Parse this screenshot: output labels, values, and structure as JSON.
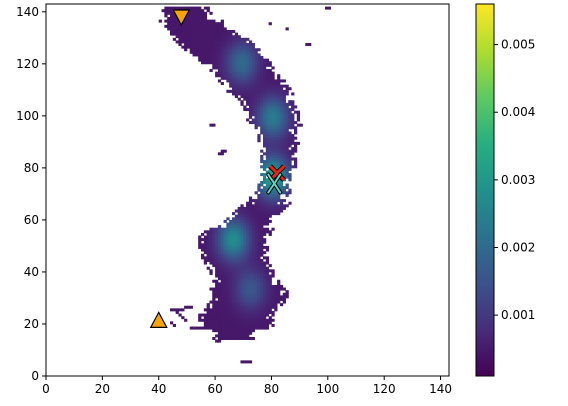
{
  "chart_data": {
    "type": "heatmap",
    "title": "",
    "xlabel": "",
    "ylabel": "",
    "xlim": [
      0,
      143
    ],
    "ylim": [
      0,
      143
    ],
    "x_ticks": [
      0,
      20,
      40,
      60,
      80,
      100,
      120,
      140
    ],
    "y_ticks": [
      0,
      20,
      40,
      60,
      80,
      100,
      120,
      140
    ],
    "x_tick_labels": [
      "0",
      "20",
      "40",
      "60",
      "80",
      "100",
      "120",
      "140"
    ],
    "y_tick_labels": [
      "0",
      "20",
      "40",
      "60",
      "80",
      "100",
      "120",
      "140"
    ],
    "grid": false,
    "colormap": "viridis",
    "colorbar": {
      "range": [
        0.0001,
        0.0056
      ],
      "ticks": [
        0.001,
        0.002,
        0.003,
        0.004,
        0.005
      ],
      "tick_labels": [
        "0.001",
        "0.002",
        "0.003",
        "0.004",
        "0.005"
      ]
    },
    "density_peaks": [
      {
        "x": 66,
        "y": 52,
        "value": 0.0028
      },
      {
        "x": 80,
        "y": 99,
        "value": 0.0024
      },
      {
        "x": 69,
        "y": 120,
        "value": 0.002
      },
      {
        "x": 80,
        "y": 76,
        "value": 0.0034
      },
      {
        "x": 72,
        "y": 33,
        "value": 0.0016
      }
    ],
    "markers": [
      {
        "name": "start",
        "shape": "triangle-up",
        "color": "#f5a30e",
        "x": 40,
        "y": 21
      },
      {
        "name": "goal",
        "shape": "triangle-down",
        "color": "#f5a30e",
        "x": 48,
        "y": 138
      },
      {
        "name": "estimate",
        "shape": "x",
        "color": "#e2261a",
        "x": 82,
        "y": 78
      },
      {
        "name": "estimate-alt",
        "shape": "thin-x",
        "color": "#5ed8d0",
        "x": 81,
        "y": 74
      }
    ]
  }
}
